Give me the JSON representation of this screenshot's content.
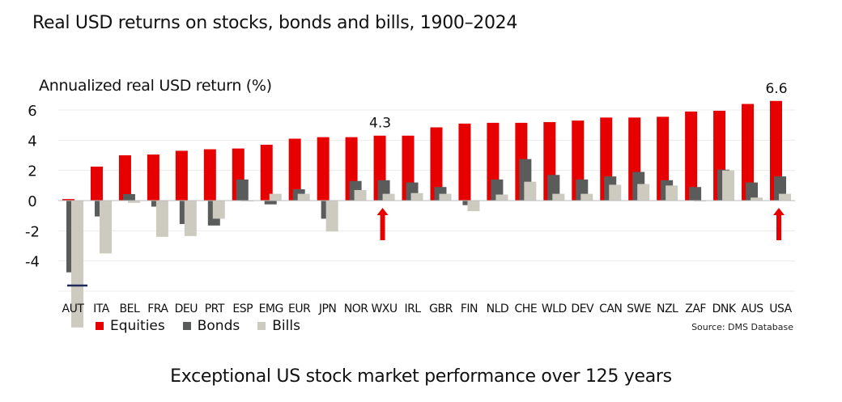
{
  "title": "Real USD returns on stocks, bonds and bills, 1900–2024",
  "caption": "Exceptional US stock market performance over 125 years",
  "source": "Source: DMS Database",
  "chart_data": {
    "type": "bar",
    "ylabel": "Annualized real USD return (%)",
    "ylim": [
      -6,
      6.8
    ],
    "yticks": [
      6,
      4,
      2,
      0,
      -2,
      -4
    ],
    "grid": true,
    "legend_position": "bottom-left",
    "categories": [
      "AUT",
      "ITA",
      "BEL",
      "FRA",
      "DEU",
      "PRT",
      "ESP",
      "EMG",
      "EUR",
      "JPN",
      "NOR",
      "WXU",
      "IRL",
      "GBR",
      "FIN",
      "NLD",
      "CHE",
      "WLD",
      "DEV",
      "CAN",
      "SWE",
      "NZL",
      "ZAF",
      "DNK",
      "AUS",
      "USA"
    ],
    "series": [
      {
        "name": "Equities",
        "color": "#e60000",
        "values": [
          0.1,
          2.25,
          3.0,
          3.05,
          3.3,
          3.4,
          3.45,
          3.7,
          4.1,
          4.2,
          4.2,
          4.3,
          4.3,
          4.85,
          5.1,
          5.15,
          5.15,
          5.2,
          5.3,
          5.5,
          5.5,
          5.55,
          5.9,
          5.95,
          6.4,
          6.6
        ]
      },
      {
        "name": "Bonds",
        "color": "#5a5b5b",
        "values": [
          -4.75,
          -1.05,
          0.43,
          -0.4,
          -1.55,
          -1.65,
          1.4,
          -0.25,
          0.75,
          -1.2,
          1.3,
          1.35,
          1.2,
          0.9,
          -0.3,
          1.4,
          2.75,
          1.7,
          1.4,
          1.6,
          1.9,
          1.35,
          0.9,
          2.05,
          1.2,
          1.6
        ]
      },
      {
        "name": "Bills",
        "color": "#cdcbbf",
        "values": [
          -8.4,
          -3.5,
          -0.15,
          -2.4,
          -2.35,
          -1.2,
          -0.05,
          0.45,
          0.45,
          -2.05,
          0.7,
          0.45,
          0.5,
          0.45,
          -0.7,
          0.4,
          1.25,
          0.45,
          0.45,
          1.05,
          1.1,
          1.0,
          -0.05,
          2.0,
          0.2,
          0.45
        ]
      }
    ],
    "annotations": [
      {
        "category": "WXU",
        "text": "4.3",
        "arrow": true
      },
      {
        "category": "USA",
        "text": "6.6",
        "arrow": true
      }
    ],
    "axis_break": {
      "category": "AUT",
      "color": "#1f2a5a"
    }
  }
}
